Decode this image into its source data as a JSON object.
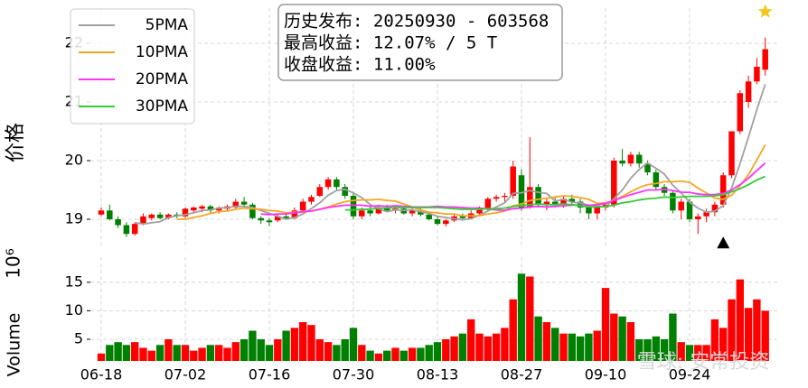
{
  "chart_data": {
    "type": "candlestick",
    "ylabel": "价格",
    "categories": [
      "06-18",
      null,
      null,
      null,
      null,
      null,
      null,
      null,
      null,
      null,
      "07-02",
      null,
      null,
      null,
      null,
      null,
      null,
      null,
      null,
      null,
      "07-16",
      null,
      null,
      null,
      null,
      null,
      null,
      null,
      null,
      null,
      "07-30",
      null,
      null,
      null,
      null,
      null,
      null,
      null,
      null,
      null,
      "08-13",
      null,
      null,
      null,
      null,
      null,
      null,
      null,
      null,
      null,
      "08-27",
      null,
      null,
      null,
      null,
      null,
      null,
      null,
      null,
      null,
      "09-10",
      null,
      null,
      null,
      null,
      null,
      null,
      null,
      null,
      null,
      "09-24",
      null,
      null,
      null,
      null,
      null,
      null,
      null,
      null,
      null
    ],
    "open": [
      19.08,
      19.15,
      19.0,
      18.9,
      18.75,
      18.92,
      19.02,
      19.08,
      19.02,
      19.08,
      19.05,
      19.15,
      19.18,
      19.22,
      19.15,
      19.18,
      19.2,
      19.3,
      19.25,
      19.02,
      18.98,
      18.98,
      19.05,
      19.02,
      19.15,
      19.3,
      19.4,
      19.55,
      19.68,
      19.55,
      19.4,
      19.05,
      19.15,
      19.1,
      19.2,
      19.15,
      19.18,
      19.1,
      19.15,
      19.08,
      19.0,
      18.92,
      18.98,
      19.05,
      19.02,
      19.1,
      19.18,
      19.35,
      19.38,
      19.4,
      19.75,
      19.2,
      19.55,
      19.25,
      19.3,
      19.25,
      19.35,
      19.3,
      19.2,
      19.1,
      19.2,
      19.25,
      20.0,
      19.95,
      20.1,
      19.95,
      19.8,
      19.55,
      19.45,
      19.15,
      19.3,
      19.0,
      19.05,
      19.12,
      19.25,
      19.75,
      20.5,
      21.0,
      21.35,
      21.55
    ],
    "high": [
      19.2,
      19.25,
      19.05,
      18.95,
      18.95,
      19.1,
      19.1,
      19.12,
      19.1,
      19.12,
      19.2,
      19.22,
      19.25,
      19.25,
      19.22,
      19.25,
      19.35,
      19.38,
      19.28,
      19.05,
      19.02,
      19.08,
      19.12,
      19.2,
      19.35,
      19.42,
      19.6,
      19.72,
      19.72,
      19.6,
      19.45,
      19.2,
      19.22,
      19.25,
      19.25,
      19.22,
      19.2,
      19.2,
      19.2,
      19.1,
      19.05,
      19.0,
      19.08,
      19.1,
      19.15,
      19.22,
      19.38,
      19.42,
      19.45,
      20.0,
      19.85,
      20.4,
      19.6,
      19.35,
      19.38,
      19.4,
      19.42,
      19.35,
      19.25,
      19.25,
      19.3,
      20.05,
      20.2,
      20.15,
      20.15,
      20.0,
      19.85,
      19.6,
      19.5,
      19.35,
      19.35,
      19.1,
      19.18,
      19.3,
      19.8,
      20.5,
      21.2,
      21.45,
      21.75,
      22.1
    ],
    "low": [
      19.05,
      18.98,
      18.85,
      18.7,
      18.72,
      18.9,
      18.98,
      19.0,
      19.0,
      19.02,
      19.02,
      19.1,
      19.12,
      19.1,
      19.1,
      19.15,
      19.18,
      19.2,
      19.0,
      18.92,
      18.88,
      18.95,
      19.0,
      19.0,
      19.12,
      19.25,
      19.38,
      19.5,
      19.5,
      19.35,
      19.0,
      19.0,
      19.05,
      19.08,
      19.12,
      19.1,
      19.08,
      19.05,
      19.05,
      18.98,
      18.9,
      18.88,
      18.95,
      18.98,
      19.0,
      19.08,
      19.15,
      19.3,
      19.3,
      19.35,
      19.15,
      19.18,
      19.2,
      19.15,
      19.2,
      19.2,
      19.25,
      19.1,
      19.0,
      19.0,
      19.15,
      19.2,
      19.9,
      19.9,
      19.88,
      19.75,
      19.5,
      19.4,
      19.1,
      19.0,
      18.95,
      18.75,
      18.95,
      19.05,
      19.2,
      19.7,
      20.45,
      20.9,
      21.3,
      21.45
    ],
    "close": [
      19.15,
      19.0,
      18.9,
      18.75,
      18.92,
      19.05,
      19.08,
      19.02,
      19.08,
      19.05,
      19.18,
      19.2,
      19.22,
      19.15,
      19.2,
      19.22,
      19.3,
      19.25,
      19.02,
      18.98,
      18.95,
      19.05,
      19.02,
      19.15,
      19.3,
      19.38,
      19.55,
      19.68,
      19.55,
      19.4,
      19.05,
      19.15,
      19.1,
      19.2,
      19.15,
      19.18,
      19.1,
      19.15,
      19.08,
      19.0,
      18.92,
      18.98,
      19.05,
      19.02,
      19.1,
      19.18,
      19.35,
      19.38,
      19.4,
      19.9,
      19.2,
      19.55,
      19.25,
      19.3,
      19.25,
      19.35,
      19.3,
      19.2,
      19.1,
      19.2,
      19.25,
      20.0,
      19.95,
      20.1,
      19.95,
      19.8,
      19.55,
      19.45,
      19.15,
      19.3,
      19.0,
      19.05,
      19.12,
      19.25,
      19.75,
      20.5,
      21.15,
      21.35,
      21.6,
      21.9
    ],
    "up_color": "#ff0000",
    "down_color": "#008000",
    "series": [
      {
        "name": "5PMA",
        "color": "#a0a0a0",
        "values": [
          null,
          null,
          null,
          null,
          18.94,
          18.92,
          18.94,
          18.96,
          19.03,
          19.06,
          19.08,
          19.11,
          19.15,
          19.16,
          19.19,
          19.2,
          19.22,
          19.22,
          19.2,
          19.15,
          19.1,
          19.05,
          19.0,
          19.03,
          19.09,
          19.18,
          19.28,
          19.41,
          19.49,
          19.51,
          19.45,
          19.37,
          19.25,
          19.18,
          19.13,
          19.16,
          19.15,
          19.16,
          19.13,
          19.1,
          19.05,
          19.03,
          19.01,
          18.99,
          19.01,
          19.07,
          19.14,
          19.21,
          19.28,
          19.44,
          19.45,
          19.49,
          19.46,
          19.44,
          19.31,
          19.34,
          19.29,
          19.28,
          19.24,
          19.23,
          19.21,
          19.35,
          19.5,
          19.7,
          19.85,
          19.96,
          19.87,
          19.77,
          19.58,
          19.45,
          19.29,
          19.19,
          19.12,
          19.14,
          19.23,
          19.53,
          19.95,
          20.4,
          20.87,
          21.3
        ]
      },
      {
        "name": "10PMA",
        "color": "#f5a623",
        "values": [
          null,
          null,
          null,
          null,
          null,
          null,
          null,
          null,
          null,
          19.0,
          19.0,
          19.03,
          19.06,
          19.1,
          19.13,
          19.14,
          19.17,
          19.19,
          19.18,
          19.17,
          19.15,
          19.14,
          19.11,
          19.12,
          19.12,
          19.14,
          19.17,
          19.21,
          19.26,
          19.3,
          19.32,
          19.33,
          19.33,
          19.34,
          19.32,
          19.31,
          19.26,
          19.21,
          19.16,
          19.12,
          19.11,
          19.09,
          19.09,
          19.06,
          19.06,
          19.06,
          19.09,
          19.11,
          19.14,
          19.23,
          19.26,
          19.32,
          19.34,
          19.36,
          19.38,
          19.4,
          19.39,
          19.37,
          19.34,
          19.27,
          19.28,
          19.32,
          19.39,
          19.47,
          19.54,
          19.59,
          19.61,
          19.64,
          19.64,
          19.65,
          19.63,
          19.53,
          19.45,
          19.36,
          19.34,
          19.41,
          19.57,
          19.76,
          20.01,
          20.27
        ]
      },
      {
        "name": "20PMA",
        "color": "#ff33ff",
        "values": [
          null,
          null,
          null,
          null,
          null,
          null,
          null,
          null,
          null,
          null,
          null,
          null,
          null,
          null,
          null,
          null,
          null,
          null,
          null,
          19.09,
          19.08,
          19.09,
          19.09,
          19.11,
          19.13,
          19.14,
          19.17,
          19.2,
          19.22,
          19.24,
          19.24,
          19.24,
          19.22,
          19.23,
          19.22,
          19.23,
          19.22,
          19.21,
          19.21,
          19.21,
          19.22,
          19.21,
          19.21,
          19.2,
          19.19,
          19.19,
          19.18,
          19.16,
          19.15,
          19.18,
          19.19,
          19.21,
          19.22,
          19.21,
          19.22,
          19.23,
          19.24,
          19.24,
          19.24,
          19.25,
          19.27,
          19.32,
          19.37,
          19.42,
          19.46,
          19.5,
          19.5,
          19.51,
          19.49,
          19.46,
          19.46,
          19.43,
          19.42,
          19.42,
          19.44,
          19.5,
          19.59,
          19.7,
          19.83,
          19.96
        ]
      },
      {
        "name": "30PMA",
        "color": "#33cc33",
        "values": [
          null,
          null,
          null,
          null,
          null,
          null,
          null,
          null,
          null,
          null,
          null,
          null,
          null,
          null,
          null,
          null,
          null,
          null,
          null,
          null,
          null,
          null,
          null,
          null,
          null,
          null,
          null,
          null,
          null,
          19.16,
          19.16,
          19.17,
          19.17,
          19.19,
          19.19,
          19.2,
          19.2,
          19.2,
          19.2,
          19.2,
          19.2,
          19.19,
          19.18,
          19.17,
          19.17,
          19.17,
          19.18,
          19.18,
          19.19,
          19.22,
          19.23,
          19.25,
          19.26,
          19.25,
          19.25,
          19.26,
          19.25,
          19.23,
          19.21,
          19.21,
          19.22,
          19.24,
          19.28,
          19.3,
          19.33,
          19.35,
          19.36,
          19.38,
          19.37,
          19.38,
          19.39,
          19.39,
          19.39,
          19.4,
          19.42,
          19.47,
          19.52,
          19.59,
          19.67,
          19.73
        ]
      }
    ],
    "ylim": [
      18.5,
      22.6
    ],
    "yticks": [
      19,
      20,
      21,
      22
    ],
    "grid": true,
    "legend": "upper left",
    "annotation": [
      "历史发布: 20250930 - 603568",
      "最高收益: 12.07% / 5 T",
      "收盘收益: 11.00%"
    ],
    "markers": [
      {
        "x": 74,
        "value": 18.58,
        "shape": "triangle",
        "color": "#000000"
      },
      {
        "x": 79,
        "value": 22.54,
        "shape": "star",
        "color": "#f5c518"
      }
    ],
    "volume": {
      "ylabel": "Volume",
      "offset_label": "10⁶",
      "ylim": [
        1.2,
        19.4
      ],
      "yticks": [
        5,
        10,
        15
      ],
      "values": [
        2.5,
        4,
        4.5,
        4,
        4.5,
        3.5,
        3,
        4,
        5,
        4,
        4,
        3,
        3.5,
        4,
        4,
        3.5,
        4.5,
        5,
        6.5,
        5,
        4,
        5,
        6.5,
        7,
        8,
        7.5,
        5,
        4.5,
        4,
        5,
        7,
        4,
        3,
        2.5,
        3,
        3.5,
        3,
        3.5,
        3.5,
        4,
        4.5,
        5,
        5.5,
        6,
        8.5,
        6,
        5.5,
        6,
        7,
        12,
        16.5,
        16,
        9,
        8,
        7,
        6,
        6,
        5.5,
        6,
        6.5,
        14,
        9.5,
        9,
        8,
        5,
        5,
        5.5,
        5,
        9.5,
        4.5,
        4,
        4,
        4,
        8.5,
        7,
        12,
        15.5,
        10.5,
        12,
        10
      ]
    },
    "watermark": "雪球: 安常投资"
  }
}
